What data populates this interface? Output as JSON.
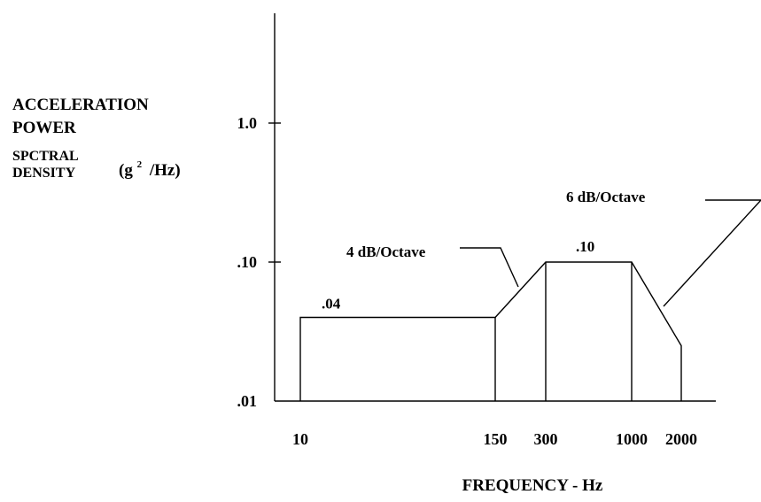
{
  "chart_data": {
    "type": "line",
    "title": "",
    "ylabel": {
      "line1": "ACCELERATION",
      "line2": "POWER",
      "line3": "SPCTRAL",
      "line4": "DENSITY",
      "units_base": "(g",
      "units_exp": "2",
      "units_tail": "/Hz)"
    },
    "xlabel": "FREQUENCY - Hz",
    "x_scale": "log",
    "y_scale": "log",
    "ylim": [
      0.01,
      2.0
    ],
    "xlim": [
      10,
      2000
    ],
    "y_ticks": [
      {
        "value": 0.01,
        "label": ".01"
      },
      {
        "value": 0.1,
        "label": ".10"
      },
      {
        "value": 1.0,
        "label": "1.0"
      }
    ],
    "x_ticks": [
      {
        "value": 10,
        "label": "10"
      },
      {
        "value": 150,
        "label": "150"
      },
      {
        "value": 300,
        "label": "300"
      },
      {
        "value": 1000,
        "label": "1000"
      },
      {
        "value": 2000,
        "label": "2000"
      }
    ],
    "series": [
      {
        "x": [
          10,
          10,
          150,
          300,
          1000,
          2000,
          2000
        ],
        "y": [
          0.01,
          0.04,
          0.04,
          0.1,
          0.1,
          0.025,
          0.01
        ]
      }
    ],
    "verticals": [
      {
        "x": 150,
        "y_top": 0.04
      },
      {
        "x": 300,
        "y_top": 0.1
      },
      {
        "x": 1000,
        "y_top": 0.1
      }
    ],
    "value_labels": [
      {
        "text": ".04",
        "x": 10,
        "y": 0.04
      },
      {
        "text": ".10",
        "x": 300,
        "y": 0.1
      }
    ],
    "annotations": [
      {
        "text": "4 dB/Octave",
        "target_x": 212,
        "target_y": 0.063
      },
      {
        "text": "6 dB/Octave",
        "target_x": 1414,
        "target_y": 0.05
      }
    ]
  }
}
